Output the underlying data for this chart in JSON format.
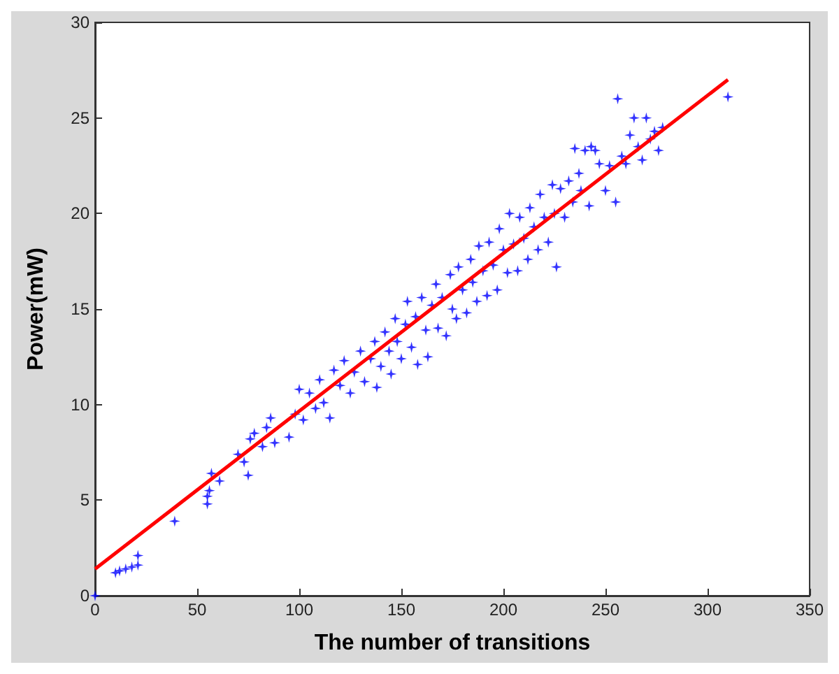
{
  "chart_data": {
    "type": "scatter",
    "xlabel": "The number of transitions",
    "ylabel": "Power(mW)",
    "xlim": [
      0,
      350
    ],
    "xticks": [
      0,
      50,
      100,
      150,
      200,
      250,
      300,
      350
    ],
    "ylim": [
      0,
      30
    ],
    "yticks": [
      0,
      5,
      10,
      15,
      20,
      25,
      30
    ],
    "grid": false,
    "marker": "star",
    "series": [
      {
        "color": "#0000ff",
        "x": [
          0,
          10,
          12,
          15,
          18,
          21,
          21,
          39,
          55,
          55,
          56,
          57,
          61,
          70,
          73,
          75,
          76,
          78,
          82,
          84,
          86,
          88,
          95,
          98,
          100,
          102,
          105,
          108,
          110,
          112,
          115,
          117,
          120,
          122,
          125,
          127,
          130,
          132,
          135,
          137,
          138,
          140,
          142,
          144,
          145,
          147,
          148,
          150,
          152,
          153,
          155,
          157,
          158,
          160,
          162,
          163,
          165,
          167,
          168,
          170,
          172,
          174,
          175,
          177,
          178,
          180,
          182,
          184,
          185,
          187,
          188,
          190,
          192,
          193,
          195,
          197,
          198,
          200,
          202,
          203,
          205,
          207,
          208,
          210,
          212,
          213,
          215,
          217,
          218,
          220,
          222,
          224,
          225,
          226,
          228,
          230,
          232,
          234,
          235,
          237,
          238,
          240,
          242,
          243,
          245,
          247,
          250,
          252,
          255,
          256,
          258,
          260,
          262,
          264,
          266,
          268,
          270,
          272,
          274,
          276,
          278,
          310
        ],
        "values": [
          0,
          1.2,
          1.3,
          1.4,
          1.5,
          1.6,
          2.1,
          3.9,
          4.8,
          5.2,
          5.5,
          6.4,
          6.0,
          7.4,
          7.0,
          6.3,
          8.2,
          8.5,
          7.8,
          8.8,
          9.3,
          8.0,
          8.3,
          9.5,
          10.8,
          9.2,
          10.6,
          9.8,
          11.3,
          10.1,
          9.3,
          11.8,
          11.0,
          12.3,
          10.6,
          11.7,
          12.8,
          11.2,
          12.4,
          13.3,
          10.9,
          12.0,
          13.8,
          12.8,
          11.6,
          14.5,
          13.3,
          12.4,
          14.2,
          15.4,
          13.0,
          14.6,
          12.1,
          15.6,
          13.9,
          12.5,
          15.2,
          16.3,
          14.0,
          15.6,
          13.6,
          16.8,
          15.0,
          14.5,
          17.2,
          16.0,
          14.8,
          17.6,
          16.4,
          15.4,
          18.3,
          17.0,
          15.7,
          18.5,
          17.3,
          16.0,
          19.2,
          18.1,
          16.9,
          20.0,
          18.4,
          17.0,
          19.8,
          18.7,
          17.6,
          20.3,
          19.3,
          18.1,
          21.0,
          19.8,
          18.5,
          21.5,
          20.0,
          17.2,
          21.3,
          19.8,
          21.7,
          20.6,
          23.4,
          22.1,
          21.2,
          23.3,
          20.4,
          23.5,
          23.3,
          22.6,
          21.2,
          22.5,
          20.6,
          26.0,
          23.0,
          22.6,
          24.1,
          25.0,
          23.5,
          22.8,
          25.0,
          23.9,
          24.3,
          23.3,
          24.5,
          26.1
        ]
      },
      {
        "type": "line",
        "color": "#ff0000",
        "marker": "none",
        "line_style": "solid",
        "x": [
          0,
          310
        ],
        "values": [
          1.4,
          27.0
        ]
      }
    ]
  }
}
